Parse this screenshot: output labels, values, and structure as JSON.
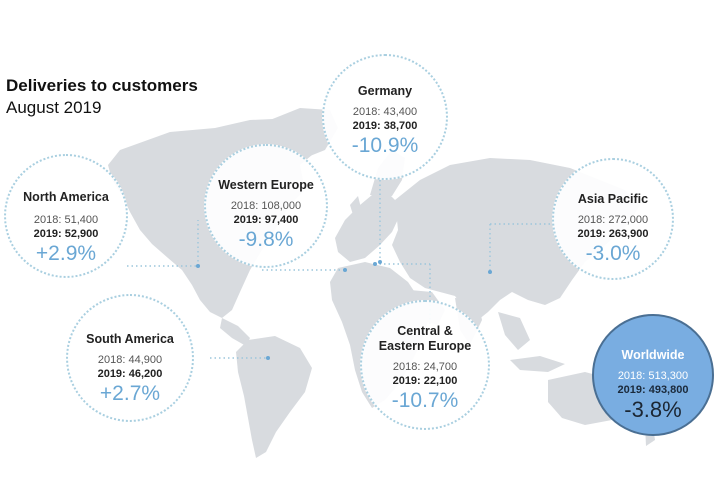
{
  "header": {
    "title": "Deliveries to customers",
    "subtitle": "August 2019"
  },
  "colors": {
    "accent": "#6aa7d4",
    "land": "#d8dbdf",
    "dot_line": "#9cc6dc",
    "worldwide_fill": "#79ade1"
  },
  "regions": {
    "germany": {
      "name": "Germany",
      "y2018": "2018: 43,400",
      "y2019": "2019: 38,700",
      "change": "-10.9%"
    },
    "north_america": {
      "name": "North America",
      "y2018": "2018: 51,400",
      "y2019": "2019: 52,900",
      "change": "+2.9%"
    },
    "western_europe": {
      "name": "Western Europe",
      "y2018": "2018: 108,000",
      "y2019": "2019:  97,400",
      "change": "-9.8%"
    },
    "asia_pacific": {
      "name": "Asia Pacific",
      "y2018": "2018: 272,000",
      "y2019": "2019: 263,900",
      "change": "-3.0%"
    },
    "south_america": {
      "name": "South America",
      "y2018": "2018: 44,900",
      "y2019": "2019: 46,200",
      "change": "+2.7%"
    },
    "central_eastern_europe": {
      "name_line1": "Central &",
      "name_line2": "Eastern Europe",
      "y2018": "2018: 24,700",
      "y2019": "2019: 22,100",
      "change": "-10.7%"
    },
    "worldwide": {
      "name": "Worldwide",
      "y2018": "2018: 513,300",
      "y2019": "2019: 493,800",
      "change": "-3.8%"
    }
  }
}
